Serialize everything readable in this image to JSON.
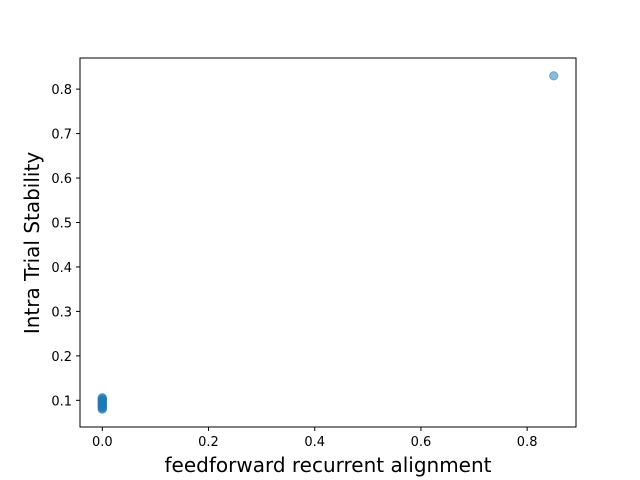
{
  "chart_data": {
    "type": "scatter",
    "title": "",
    "xlabel": "feedforward recurrent alignment",
    "ylabel": "Intra Trial Stability",
    "xlim": [
      -0.042,
      0.892
    ],
    "ylim": [
      0.04,
      0.87
    ],
    "x_ticks": [
      0.0,
      0.2,
      0.4,
      0.6,
      0.8
    ],
    "x_tick_labels": [
      "0.0",
      "0.2",
      "0.4",
      "0.6",
      "0.8"
    ],
    "y_ticks": [
      0.1,
      0.2,
      0.3,
      0.4,
      0.5,
      0.6,
      0.7,
      0.8
    ],
    "y_tick_labels": [
      "0.1",
      "0.2",
      "0.3",
      "0.4",
      "0.5",
      "0.6",
      "0.7",
      "0.8"
    ],
    "grid": false,
    "legend": "none",
    "marker_color": "#1f77b4",
    "marker_alpha": 0.5,
    "series": [
      {
        "points": [
          {
            "x": 0.0,
            "y": 0.08
          },
          {
            "x": 0.0,
            "y": 0.082
          },
          {
            "x": 0.0,
            "y": 0.084
          },
          {
            "x": 0.0,
            "y": 0.086
          },
          {
            "x": 0.0,
            "y": 0.088
          },
          {
            "x": 0.0,
            "y": 0.09
          },
          {
            "x": 0.0,
            "y": 0.092
          },
          {
            "x": 0.0,
            "y": 0.094
          },
          {
            "x": 0.0,
            "y": 0.096
          },
          {
            "x": 0.0,
            "y": 0.098
          },
          {
            "x": 0.0,
            "y": 0.1
          },
          {
            "x": 0.0,
            "y": 0.102
          },
          {
            "x": 0.0,
            "y": 0.104
          },
          {
            "x": 0.0,
            "y": 0.106
          },
          {
            "x": 0.85,
            "y": 0.83
          }
        ]
      }
    ]
  }
}
